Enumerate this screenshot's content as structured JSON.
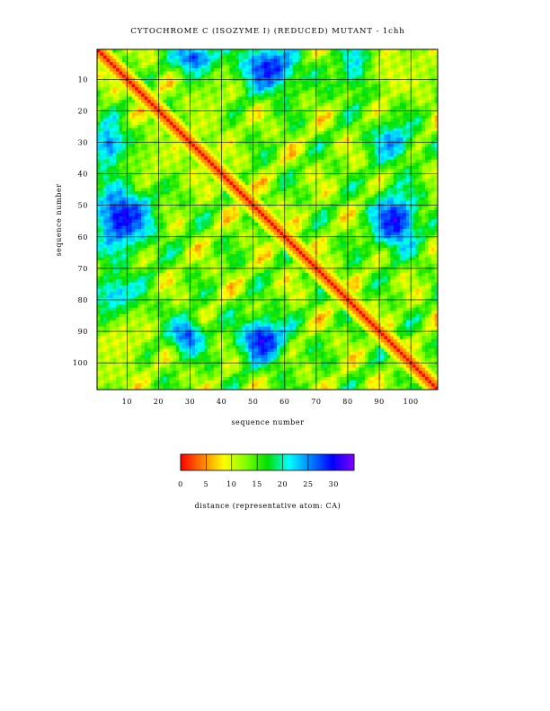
{
  "chart_data": {
    "type": "heatmap",
    "title": "CYTOCHROME C (ISOZYME I) (REDUCED) MUTANT - 1chh",
    "xlabel": "sequence number",
    "ylabel": "sequence number",
    "x_range": [
      1,
      108
    ],
    "y_range": [
      1,
      108
    ],
    "x_ticks": [
      10,
      20,
      30,
      40,
      50,
      60,
      70,
      80,
      90,
      100
    ],
    "y_ticks": [
      10,
      20,
      30,
      40,
      50,
      60,
      70,
      80,
      90,
      100
    ],
    "y_inverted": true,
    "grid": true,
    "colorbar": {
      "label": "distance (representative atom: CA)",
      "range": [
        0,
        34
      ],
      "ticks": [
        0,
        5,
        10,
        15,
        20,
        25,
        30
      ],
      "colors": [
        "#ff0000",
        "#ff8000",
        "#ffff00",
        "#80ff00",
        "#00e000",
        "#00ffff",
        "#0080ff",
        "#0000ff",
        "#8000ff"
      ]
    },
    "high_distance_regions": [
      {
        "x": [
          27,
          36
        ],
        "y": [
          1,
          6
        ],
        "value": 28
      },
      {
        "x": [
          48,
          62
        ],
        "y": [
          1,
          12
        ],
        "value": 29
      },
      {
        "x": [
          80,
          86
        ],
        "y": [
          1,
          12
        ],
        "value": 26
      },
      {
        "x": [
          1,
          8
        ],
        "y": [
          26,
          36
        ],
        "value": 26
      },
      {
        "x": [
          1,
          16
        ],
        "y": [
          46,
          62
        ],
        "value": 30
      },
      {
        "x": [
          90,
          100
        ],
        "y": [
          48,
          62
        ],
        "value": 30
      },
      {
        "x": [
          90,
          98
        ],
        "y": [
          26,
          34
        ],
        "value": 25
      },
      {
        "x": [
          48,
          58
        ],
        "y": [
          88,
          98
        ],
        "value": 30
      },
      {
        "x": [
          26,
          32
        ],
        "y": [
          88,
          95
        ],
        "value": 27
      },
      {
        "x": [
          1,
          12
        ],
        "y": [
          74,
          84
        ],
        "value": 24
      }
    ],
    "low_distance_regions": [
      {
        "x": [
          4,
          12
        ],
        "y": [
          86,
          104
        ],
        "value": 9
      },
      {
        "x": [
          86,
          104
        ],
        "y": [
          4,
          12
        ],
        "value": 9
      },
      {
        "x": [
          32,
          40
        ],
        "y": [
          12,
          30
        ],
        "value": 11
      },
      {
        "x": [
          12,
          30
        ],
        "y": [
          32,
          40
        ],
        "value": 11
      },
      {
        "x": [
          95,
          108
        ],
        "y": [
          1,
          10
        ],
        "value": 11
      },
      {
        "x": [
          1,
          10
        ],
        "y": [
          95,
          108
        ],
        "value": 11
      }
    ]
  }
}
